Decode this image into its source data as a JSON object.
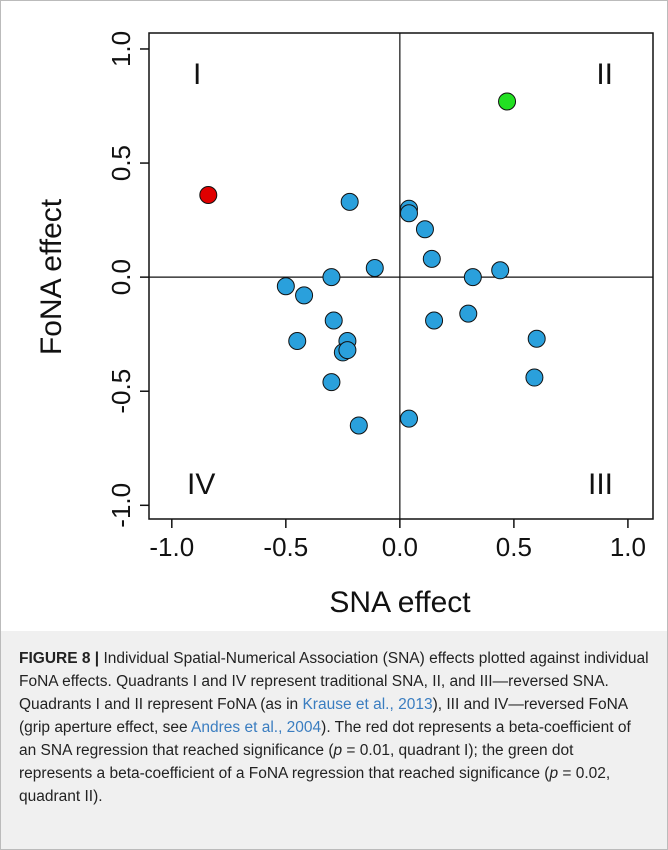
{
  "chart_data": {
    "type": "scatter",
    "xlabel": "SNA effect",
    "ylabel": "FoNA effect",
    "xlim": [
      -1.1,
      1.11
    ],
    "ylim": [
      -1.06,
      1.07
    ],
    "xticks": [
      {
        "value": -1,
        "label": "-1.0"
      },
      {
        "value": -0.5,
        "label": "-0.5"
      },
      {
        "value": 0,
        "label": "0.0"
      },
      {
        "value": 0.5,
        "label": "0.5"
      },
      {
        "value": 1,
        "label": "1.0"
      }
    ],
    "yticks": [
      {
        "value": -1,
        "label": "-1.0"
      },
      {
        "value": -0.5,
        "label": "-0.5"
      },
      {
        "value": 0,
        "label": "0.0"
      },
      {
        "value": 0.5,
        "label": "0.5"
      },
      {
        "value": 1,
        "label": "1.0"
      }
    ],
    "annotations": [
      "I",
      "II",
      "III",
      "IV"
    ],
    "series": [
      {
        "color": "#2aa0dc",
        "x": [
          -0.22,
          0.04,
          0.04,
          0.11,
          0.14,
          -0.11,
          -0.3,
          0.32,
          0.44,
          -0.5,
          -0.42,
          -0.29,
          0.15,
          0.3,
          0.6,
          -0.23,
          -0.25,
          -0.23,
          -0.45,
          -0.3,
          0.59,
          0.04,
          -0.18
        ],
        "y": [
          0.33,
          0.3,
          0.28,
          0.21,
          0.08,
          0.04,
          0,
          0,
          0.03,
          -0.04,
          -0.08,
          -0.19,
          -0.19,
          -0.16,
          -0.27,
          -0.28,
          -0.33,
          -0.32,
          -0.28,
          -0.46,
          -0.44,
          -0.62,
          -0.65
        ]
      },
      {
        "color": "#e00000",
        "x": [
          -0.84
        ],
        "y": [
          0.36
        ]
      },
      {
        "color": "#22e022",
        "x": [
          0.47
        ],
        "y": [
          0.77
        ]
      }
    ]
  },
  "caption": {
    "label": "FIGURE 8 |",
    "segments": [
      {
        "text": "Individual Spatial-Numerical Association (SNA) effects plotted against individual FoNA effects. Quadrants I and IV represent traditional SNA, II, and III—reversed SNA. Quadrants I and II represent FoNA (as in "
      },
      {
        "text": "Krause et al., 2013",
        "style": "link"
      },
      {
        "text": "), III and IV—reversed FoNA (grip aperture effect, see "
      },
      {
        "text": "Andres et al., 2004",
        "style": "link"
      },
      {
        "text": "). The red dot represents a beta-coefficient of an SNA regression that reached significance ("
      },
      {
        "text": "p",
        "style": "italic"
      },
      {
        "text": " = 0.01, quadrant I); the green dot represents a beta-coefficient of a FoNA regression that reached significance ("
      },
      {
        "text": "p",
        "style": "italic"
      },
      {
        "text": " = 0.02, quadrant II)."
      }
    ]
  }
}
